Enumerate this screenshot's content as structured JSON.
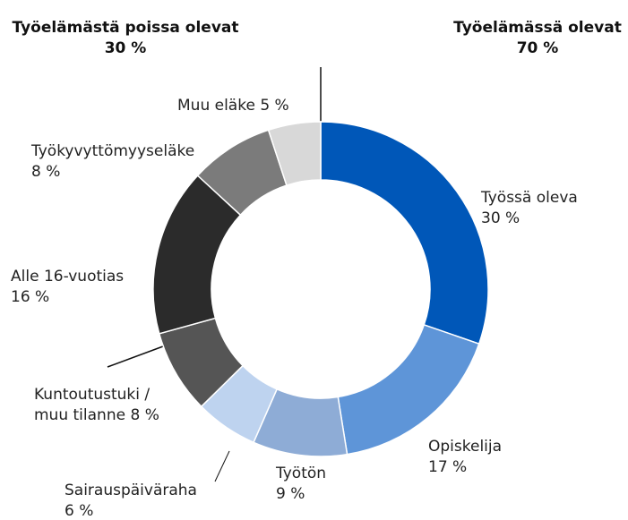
{
  "chart_data": {
    "type": "donut",
    "groups": [
      {
        "name": "Työelämästä poissa olevat",
        "value": 30,
        "value_label": "30 %"
      },
      {
        "name": "Työelämässä olevat",
        "value": 70,
        "value_label": "70 %"
      }
    ],
    "categories": [
      "Työssä oleva",
      "Opiskelija",
      "Työtön",
      "Sairauspäiväraha",
      "Kuntoutustuki / muu tilanne",
      "Alle 16-vuotias",
      "Työkyvyttömyyseläke",
      "Muu eläke"
    ],
    "values": [
      30,
      17,
      9,
      6,
      8,
      16,
      8,
      5
    ],
    "value_labels": [
      "30 %",
      "17 %",
      "9 %",
      "6 %",
      "8 %",
      "16 %",
      "8 %",
      "5 %"
    ],
    "colors": [
      "#0057b8",
      "#5e95d8",
      "#8eacd6",
      "#bed3ef",
      "#555555",
      "#2b2b2b",
      "#7b7b7b",
      "#d8d8d8"
    ]
  }
}
